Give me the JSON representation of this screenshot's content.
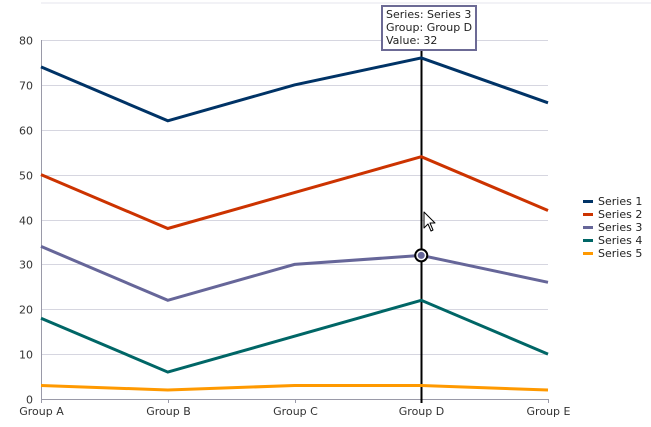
{
  "chart_data": {
    "type": "line",
    "categories": [
      "Group A",
      "Group B",
      "Group C",
      "Group D",
      "Group E"
    ],
    "series": [
      {
        "name": "Series 1",
        "color": "#003366",
        "values": [
          74,
          62,
          70,
          76,
          66
        ]
      },
      {
        "name": "Series 2",
        "color": "#cc3300",
        "values": [
          50,
          38,
          46,
          54,
          42
        ]
      },
      {
        "name": "Series 3",
        "color": "#666699",
        "values": [
          34,
          22,
          30,
          32,
          26
        ]
      },
      {
        "name": "Series 4",
        "color": "#006666",
        "values": [
          18,
          6,
          14,
          22,
          10
        ]
      },
      {
        "name": "Series 5",
        "color": "#ff9900",
        "values": [
          3,
          2,
          3,
          3,
          2
        ]
      }
    ],
    "ylim": [
      0,
      80
    ],
    "yticks": [
      0,
      10,
      20,
      30,
      40,
      50,
      60,
      70,
      80
    ],
    "grid": true,
    "legend_position": "right"
  },
  "tooltip": {
    "series_line": "Series: Series 3",
    "group_line": "Group: Group D",
    "value_line": "Value: 32",
    "series_index": 2,
    "category_index": 3
  }
}
